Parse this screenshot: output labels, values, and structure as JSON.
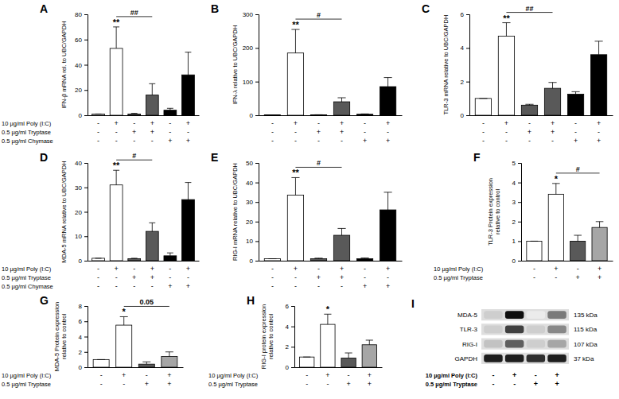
{
  "chart_data": [
    {
      "type": "bar",
      "title": "A",
      "y_label": [
        "IFN-β mRNA rel. to UBC/GAPDH"
      ],
      "categories": [
        null,
        null,
        null,
        null,
        null,
        null
      ],
      "values": [
        1,
        53,
        1,
        16,
        4,
        32
      ],
      "errors": [
        0,
        17,
        0.5,
        9,
        1.5,
        18
      ],
      "colors": [
        "#ffffff",
        "#ffffff",
        "#595959",
        "#595959",
        "#000000",
        "#000000"
      ],
      "ylim": [
        0,
        80
      ],
      "yticks": [
        0,
        20,
        40,
        60,
        80
      ],
      "tick_labels": "y",
      "significance": [
        {
          "label": "**",
          "category": 1
        }
      ],
      "brackets": [
        {
          "label": "##",
          "from": 1,
          "to": 3
        }
      ],
      "conditions": [
        {
          "label": "10 µg/ml Poly (I:C)",
          "signs": [
            "-",
            "+",
            "-",
            "+",
            "-",
            "+"
          ]
        },
        {
          "label": "0.5 µg/ml Tryptase",
          "signs": [
            "-",
            "-",
            "+",
            "+",
            "-",
            "-"
          ]
        },
        {
          "label": "0.5 µg/ml Chymase",
          "signs": [
            "-",
            "-",
            "-",
            "-",
            "+",
            "+"
          ]
        }
      ]
    },
    {
      "type": "bar",
      "title": "B",
      "y_label": [
        "IFN-λ relative to UBC/GAPDH"
      ],
      "categories": [
        null,
        null,
        null,
        null,
        null,
        null
      ],
      "values": [
        1,
        185,
        1,
        40,
        3,
        85
      ],
      "errors": [
        0,
        70,
        0.5,
        12,
        1,
        27
      ],
      "colors": [
        "#ffffff",
        "#ffffff",
        "#595959",
        "#595959",
        "#000000",
        "#000000"
      ],
      "ylim": [
        0,
        300
      ],
      "yticks": [
        0,
        100,
        200,
        300
      ],
      "tick_labels": "y",
      "significance": [
        {
          "label": "**",
          "category": 1
        }
      ],
      "brackets": [
        {
          "label": "#",
          "from": 1,
          "to": 3
        }
      ],
      "conditions": [
        {
          "signs": [
            "-",
            "+",
            "-",
            "+",
            "-",
            "+"
          ]
        },
        {
          "signs": [
            "-",
            "-",
            "+",
            "+",
            "-",
            "-"
          ]
        },
        {
          "signs": [
            "-",
            "-",
            "-",
            "-",
            "+",
            "+"
          ]
        }
      ]
    },
    {
      "type": "bar",
      "title": "C",
      "y_label": [
        "TLR-3 mRNA relative to UBC/GAPDH"
      ],
      "categories": [
        null,
        null,
        null,
        null,
        null,
        null
      ],
      "values": [
        1,
        4.7,
        0.6,
        1.6,
        1.25,
        3.6
      ],
      "errors": [
        0,
        0.8,
        0.05,
        0.35,
        0.15,
        0.8
      ],
      "colors": [
        "#ffffff",
        "#ffffff",
        "#595959",
        "#595959",
        "#000000",
        "#000000"
      ],
      "ylim": [
        0,
        6
      ],
      "yticks": [
        0,
        2,
        4,
        6
      ],
      "tick_labels": "y",
      "significance": [
        {
          "label": "**",
          "category": 1
        }
      ],
      "brackets": [
        {
          "label": "##",
          "from": 1,
          "to": 3
        }
      ],
      "conditions": [
        {
          "signs": [
            "-",
            "+",
            "-",
            "+",
            "-",
            "+"
          ]
        },
        {
          "signs": [
            "-",
            "-",
            "+",
            "+",
            "-",
            "-"
          ]
        },
        {
          "signs": [
            "-",
            "-",
            "-",
            "-",
            "+",
            "+"
          ]
        }
      ]
    },
    {
      "type": "bar",
      "title": "D",
      "y_label": [
        "MDA-5 mRNA relative to UBC/GAPDH"
      ],
      "categories": [
        null,
        null,
        null,
        null,
        null,
        null
      ],
      "values": [
        1,
        31,
        0.8,
        12,
        2,
        25
      ],
      "errors": [
        0,
        6,
        0.2,
        3.5,
        1.2,
        7
      ],
      "colors": [
        "#ffffff",
        "#ffffff",
        "#595959",
        "#595959",
        "#000000",
        "#000000"
      ],
      "ylim": [
        0,
        40
      ],
      "yticks": [
        0,
        10,
        20,
        30,
        40
      ],
      "tick_labels": "y",
      "significance": [
        {
          "label": "**",
          "category": 1
        }
      ],
      "brackets": [
        {
          "label": "#",
          "from": 1,
          "to": 3
        }
      ],
      "conditions": [
        {
          "label": "10 µg/ml Poly (I:C)",
          "signs": [
            "-",
            "+",
            "-",
            "+",
            "-",
            "+"
          ]
        },
        {
          "label": "0.5 µg/ml Tryptase",
          "signs": [
            "-",
            "-",
            "+",
            "+",
            "-",
            "-"
          ]
        },
        {
          "label": "0.5 µg/ml Chymase",
          "signs": [
            "-",
            "-",
            "-",
            "-",
            "+",
            "+"
          ]
        }
      ]
    },
    {
      "type": "bar",
      "title": "E",
      "y_label": [
        "RIG-I mRNA relative to UBC/GAPDH"
      ],
      "categories": [
        null,
        null,
        null,
        null,
        null,
        null
      ],
      "values": [
        1,
        33.5,
        1,
        13,
        1,
        26
      ],
      "errors": [
        0,
        9,
        0.3,
        3.5,
        0.4,
        9
      ],
      "colors": [
        "#ffffff",
        "#ffffff",
        "#595959",
        "#595959",
        "#000000",
        "#000000"
      ],
      "ylim": [
        0,
        50
      ],
      "yticks": [
        0,
        10,
        20,
        30,
        40,
        50
      ],
      "tick_labels": "y",
      "significance": [
        {
          "label": "**",
          "category": 1
        }
      ],
      "brackets": [
        {
          "label": "#",
          "from": 1,
          "to": 3
        }
      ],
      "conditions": [
        {
          "signs": [
            "-",
            "+",
            "-",
            "+",
            "-",
            "+"
          ]
        },
        {
          "signs": [
            "-",
            "-",
            "+",
            "+",
            "-",
            "-"
          ]
        },
        {
          "signs": [
            "-",
            "-",
            "-",
            "-",
            "+",
            "+"
          ]
        }
      ]
    },
    {
      "type": "bar",
      "title": "F",
      "y_label": [
        "TLR-3 Protein expression",
        "relative to control"
      ],
      "categories": [
        null,
        null,
        null,
        null
      ],
      "values": [
        1,
        3.4,
        1,
        1.7
      ],
      "errors": [
        0,
        0.55,
        0.3,
        0.3
      ],
      "colors": [
        "#ffffff",
        "#ffffff",
        "#595959",
        "#a6a6a6"
      ],
      "ylim": [
        0,
        5
      ],
      "yticks": [
        0,
        1,
        2,
        3,
        4,
        5
      ],
      "tick_labels": "y",
      "significance": [
        {
          "label": "*",
          "category": 1
        }
      ],
      "brackets": [
        {
          "label": "#",
          "from": 1,
          "to": 3
        }
      ],
      "conditions": [
        {
          "label": "10 µg/ml Poly (I:C)",
          "signs": [
            "-",
            "+",
            "-",
            "+"
          ]
        },
        {
          "label": "0.5 µg/ml Tryptase",
          "signs": [
            "-",
            "-",
            "+",
            "+"
          ]
        }
      ]
    },
    {
      "type": "bar",
      "title": "G",
      "y_label": [
        "MDA-5 Protein expression",
        "relative to control"
      ],
      "categories": [
        null,
        null,
        null,
        null
      ],
      "values": [
        1,
        5.5,
        0.4,
        1.4
      ],
      "errors": [
        0,
        1.1,
        0.3,
        0.6
      ],
      "colors": [
        "#ffffff",
        "#ffffff",
        "#595959",
        "#a6a6a6"
      ],
      "ylim": [
        0,
        8
      ],
      "yticks": [
        0,
        2,
        4,
        6,
        8
      ],
      "tick_labels": "y",
      "significance": [
        {
          "label": "*",
          "category": 1
        }
      ],
      "brackets": [
        {
          "label": "0.05",
          "from": 1,
          "to": 3
        }
      ],
      "conditions": [
        {
          "label": "10 µg/ml Poly (I:C)",
          "signs": [
            "-",
            "+",
            "-",
            "+"
          ]
        },
        {
          "label": "0.5 µg/ml Tryptase",
          "signs": [
            "-",
            "-",
            "+",
            "+"
          ]
        }
      ]
    },
    {
      "type": "bar",
      "title": "H",
      "y_label": [
        "RIG-I protein expression",
        "relative to control"
      ],
      "categories": [
        null,
        null,
        null,
        null
      ],
      "values": [
        1,
        4.2,
        0.9,
        2.2
      ],
      "errors": [
        0,
        1,
        0.5,
        0.45
      ],
      "colors": [
        "#ffffff",
        "#ffffff",
        "#595959",
        "#a6a6a6"
      ],
      "ylim": [
        0,
        6
      ],
      "yticks": [
        0,
        2,
        4,
        6
      ],
      "tick_labels": "y",
      "significance": [
        {
          "label": "*",
          "category": 1
        }
      ],
      "brackets": [],
      "conditions": [
        {
          "label": "10 µg/ml Poly (I:C)",
          "signs": [
            "-",
            "+",
            "-",
            "+"
          ]
        },
        {
          "label": "0.5 µg/ml Tryptase",
          "signs": [
            "-",
            "-",
            "+",
            "+"
          ]
        }
      ]
    },
    {
      "type": "blot",
      "title": "I",
      "proteins": [
        {
          "name": "MDA-5",
          "size": "135 kDa",
          "intensity": [
            0.3,
            0.95,
            0.15,
            0.6
          ]
        },
        {
          "name": "TLR-3",
          "size": "115 kDa",
          "intensity": [
            0.3,
            0.8,
            0.3,
            0.55
          ]
        },
        {
          "name": "RIG-I",
          "size": "107 kDa",
          "intensity": [
            0.35,
            0.7,
            0.3,
            0.45
          ]
        },
        {
          "name": "GAPDH",
          "size": "37 kDa",
          "intensity": [
            0.9,
            0.9,
            0.85,
            0.9
          ]
        }
      ],
      "conditions": [
        {
          "label": "10 µg/ml Poly (I:C)",
          "signs": [
            "-",
            "+",
            "-",
            "+"
          ]
        },
        {
          "label": "0.5 µg/ml Tryptase",
          "signs": [
            "-",
            "-",
            "+",
            "+"
          ]
        }
      ]
    }
  ]
}
